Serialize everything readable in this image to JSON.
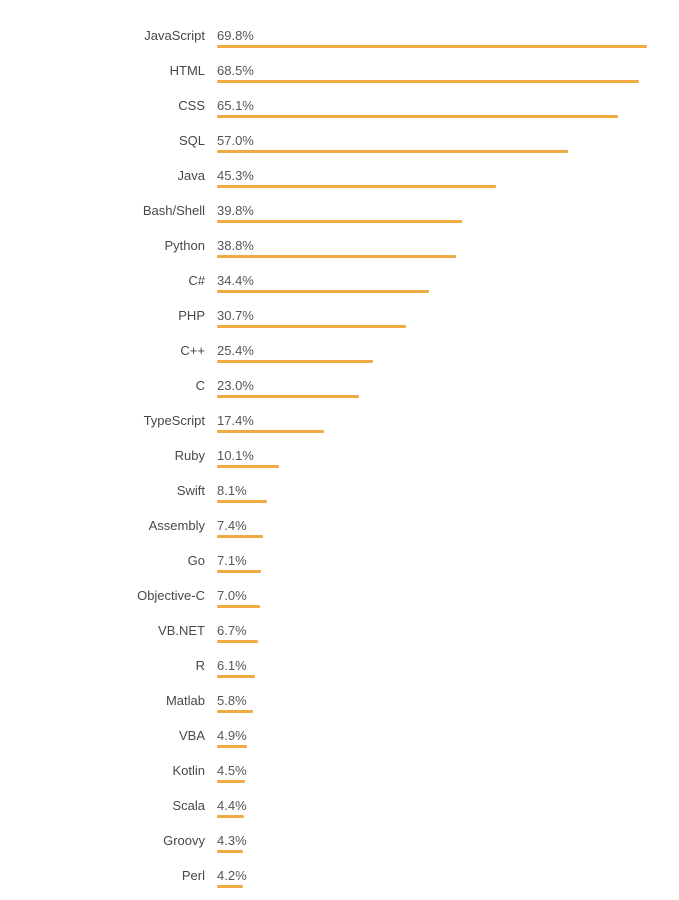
{
  "chart_data": {
    "type": "bar",
    "orientation": "horizontal",
    "title": "",
    "xlabel": "",
    "ylabel": "",
    "legend": null,
    "grid": false,
    "value_suffix": "%",
    "xlim": [
      0,
      73.5
    ],
    "bar_color": "#F0AC42",
    "label_color": "#47484a",
    "value_color": "#55565a",
    "categories": [
      "JavaScript",
      "HTML",
      "CSS",
      "SQL",
      "Java",
      "Bash/Shell",
      "Python",
      "C#",
      "PHP",
      "C++",
      "C",
      "TypeScript",
      "Ruby",
      "Swift",
      "Assembly",
      "Go",
      "Objective-C",
      "VB.NET",
      "R",
      "Matlab",
      "VBA",
      "Kotlin",
      "Scala",
      "Groovy",
      "Perl"
    ],
    "values": [
      69.8,
      68.5,
      65.1,
      57.0,
      45.3,
      39.8,
      38.8,
      34.4,
      30.7,
      25.4,
      23.0,
      17.4,
      10.1,
      8.1,
      7.4,
      7.1,
      7.0,
      6.7,
      6.1,
      5.8,
      4.9,
      4.5,
      4.4,
      4.3,
      4.2
    ],
    "value_labels": [
      "69.8%",
      "68.5%",
      "65.1%",
      "57.0%",
      "45.3%",
      "39.8%",
      "38.8%",
      "34.4%",
      "30.7%",
      "25.4%",
      "23.0%",
      "17.4%",
      "10.1%",
      "8.1%",
      "7.4%",
      "7.1%",
      "7.0%",
      "6.7%",
      "6.1%",
      "5.8%",
      "4.9%",
      "4.5%",
      "4.4%",
      "4.3%",
      "4.2%"
    ]
  }
}
